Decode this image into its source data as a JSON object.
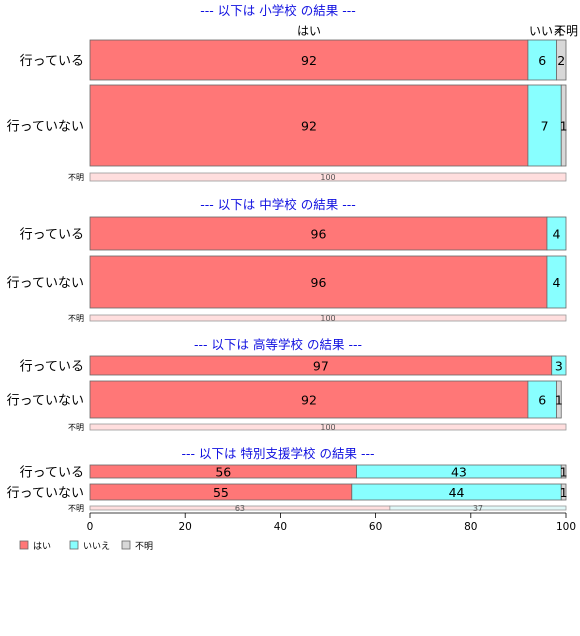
{
  "colors": {
    "yes": "#ff7777",
    "no": "#88ffff",
    "unknown": "#d8d8d8",
    "unknown_row_yes": "#ffdede",
    "unknown_row_no": "#e0f8f8",
    "title": "#1010e0"
  },
  "chart_data": {
    "type": "bar",
    "orientation": "horizontal",
    "stacked": true,
    "xlim": [
      0,
      100
    ],
    "xticks": [
      "0",
      "20",
      "40",
      "60",
      "80",
      "100"
    ],
    "series_names": [
      "はい",
      "いいえ",
      "不明"
    ],
    "column_headers": [
      "はい",
      "いいえ",
      "不明"
    ],
    "legend": {
      "items": [
        "はい",
        "いいえ",
        "不明"
      ],
      "position": "bottom-left"
    },
    "panels": [
      {
        "title": "--- 以下は 小学校 の結果 ---",
        "rows": [
          {
            "label": "行っている",
            "values": [
              92,
              6,
              2
            ]
          },
          {
            "label": "行っていない",
            "values": [
              92,
              7,
              1
            ]
          },
          {
            "label": "不明",
            "values": [
              100,
              0,
              0
            ]
          }
        ]
      },
      {
        "title": "--- 以下は 中学校 の結果 ---",
        "rows": [
          {
            "label": "行っている",
            "values": [
              96,
              4,
              0
            ]
          },
          {
            "label": "行っていない",
            "values": [
              96,
              4,
              0
            ]
          },
          {
            "label": "不明",
            "values": [
              100,
              0,
              0
            ]
          }
        ]
      },
      {
        "title": "--- 以下は 高等学校 の結果 ---",
        "rows": [
          {
            "label": "行っている",
            "values": [
              97,
              3,
              1
            ]
          },
          {
            "label": "行っていない",
            "values": [
              92,
              6,
              1
            ]
          },
          {
            "label": "不明",
            "values": [
              100,
              0,
              0
            ]
          }
        ]
      },
      {
        "title": "--- 以下は 特別支援学校 の結果 ---",
        "rows": [
          {
            "label": "行っている",
            "values": [
              56,
              43,
              1
            ]
          },
          {
            "label": "行っていない",
            "values": [
              55,
              44,
              1
            ]
          },
          {
            "label": "不明",
            "values": [
              63,
              37,
              0
            ]
          }
        ]
      }
    ]
  }
}
